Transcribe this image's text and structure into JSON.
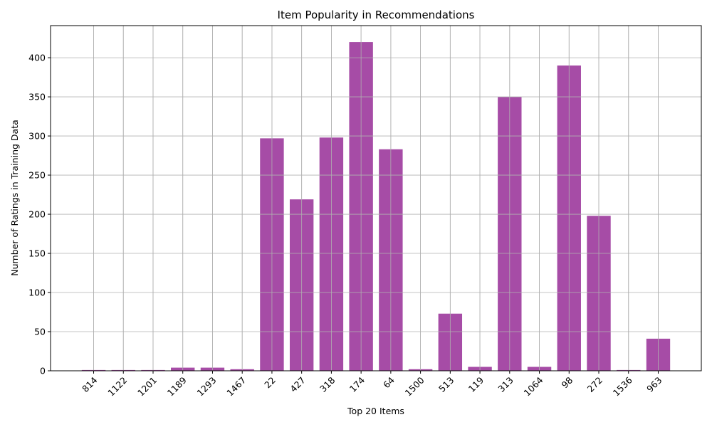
{
  "chart_data": {
    "type": "bar",
    "title": "Item Popularity in Recommendations",
    "xlabel": "Top 20 Items",
    "ylabel": "Number of Ratings in Training Data",
    "categories": [
      "814",
      "1122",
      "1201",
      "1189",
      "1293",
      "1467",
      "22",
      "427",
      "318",
      "174",
      "64",
      "1500",
      "513",
      "119",
      "313",
      "1064",
      "98",
      "272",
      "1536",
      "963"
    ],
    "values": [
      1,
      1,
      1,
      4,
      4,
      2,
      297,
      219,
      298,
      420,
      283,
      2,
      73,
      5,
      350,
      5,
      390,
      198,
      1,
      41
    ],
    "ylim": [
      0,
      441
    ],
    "yticks": [
      0,
      50,
      100,
      150,
      200,
      250,
      300,
      350,
      400
    ],
    "grid": true,
    "bar_color": "#a64ca6",
    "grid_color": "#b0b0b0"
  }
}
